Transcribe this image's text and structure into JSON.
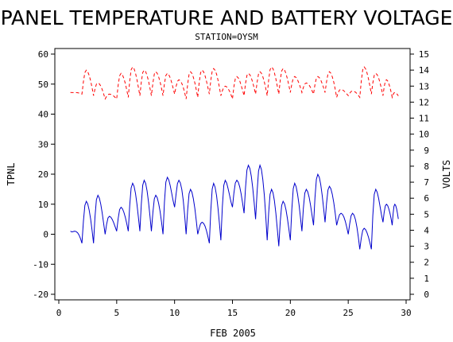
{
  "chart_data": {
    "type": "line",
    "title": "PANEL TEMPERATURE AND BATTERY VOLTAGE",
    "subtitle": "STATION=OYSM",
    "xlabel": "FEB 2005",
    "ylabel_left": "TPNL",
    "ylabel_right": "VOLTS",
    "xlim": [
      0,
      30
    ],
    "ylim_left": [
      -20,
      60
    ],
    "ylim_right": [
      0,
      15
    ],
    "x_ticks": [
      0,
      5,
      10,
      15,
      20,
      25,
      30
    ],
    "y_left_ticks": [
      -20,
      -10,
      0,
      10,
      20,
      30,
      40,
      50,
      60
    ],
    "y_right_ticks": [
      0,
      1,
      2,
      3,
      4,
      5,
      6,
      7,
      8,
      9,
      10,
      11,
      12,
      13,
      14,
      15
    ],
    "series": [
      {
        "color": "#0000cc",
        "axis": "left",
        "style": "solid",
        "daily": [
          {
            "day": 1,
            "min": 1,
            "max": 1
          },
          {
            "day": 2,
            "min": -3,
            "max": 11
          },
          {
            "day": 3,
            "min": -3,
            "max": 13
          },
          {
            "day": 4,
            "min": 0,
            "max": 6
          },
          {
            "day": 5,
            "min": 1,
            "max": 9
          },
          {
            "day": 6,
            "min": 1,
            "max": 17
          },
          {
            "day": 7,
            "min": 1,
            "max": 18
          },
          {
            "day": 8,
            "min": 1,
            "max": 13
          },
          {
            "day": 9,
            "min": 0,
            "max": 19
          },
          {
            "day": 10,
            "min": 9,
            "max": 18
          },
          {
            "day": 11,
            "min": 0,
            "max": 15
          },
          {
            "day": 12,
            "min": 0,
            "max": 4
          },
          {
            "day": 13,
            "min": -3,
            "max": 17
          },
          {
            "day": 14,
            "min": -2,
            "max": 18
          },
          {
            "day": 15,
            "min": 9,
            "max": 18
          },
          {
            "day": 16,
            "min": 7,
            "max": 23
          },
          {
            "day": 17,
            "min": 5,
            "max": 23
          },
          {
            "day": 18,
            "min": -2,
            "max": 15
          },
          {
            "day": 19,
            "min": -4,
            "max": 11
          },
          {
            "day": 20,
            "min": -2,
            "max": 17
          },
          {
            "day": 21,
            "min": 1,
            "max": 15
          },
          {
            "day": 22,
            "min": 3,
            "max": 20
          },
          {
            "day": 23,
            "min": 4,
            "max": 16
          },
          {
            "day": 24,
            "min": 3,
            "max": 7
          },
          {
            "day": 25,
            "min": 0,
            "max": 7
          },
          {
            "day": 26,
            "min": -5,
            "max": 2
          },
          {
            "day": 27,
            "min": -5,
            "max": 15
          },
          {
            "day": 28,
            "min": 4,
            "max": 10
          },
          {
            "day": 28.8,
            "min": 3,
            "max": 10
          }
        ]
      },
      {
        "color": "#ff0000",
        "axis": "right",
        "style": "dashed",
        "daily": [
          {
            "day": 1,
            "min": 12.6,
            "max": 12.6
          },
          {
            "day": 2,
            "min": 12.5,
            "max": 14.0
          },
          {
            "day": 3,
            "min": 12.4,
            "max": 13.2
          },
          {
            "day": 4,
            "min": 12.2,
            "max": 12.5
          },
          {
            "day": 5,
            "min": 12.2,
            "max": 13.8
          },
          {
            "day": 6,
            "min": 12.3,
            "max": 14.2
          },
          {
            "day": 7,
            "min": 12.4,
            "max": 14.0
          },
          {
            "day": 8,
            "min": 12.4,
            "max": 13.9
          },
          {
            "day": 9,
            "min": 12.4,
            "max": 13.8
          },
          {
            "day": 10,
            "min": 12.5,
            "max": 13.4
          },
          {
            "day": 11,
            "min": 12.2,
            "max": 13.9
          },
          {
            "day": 12,
            "min": 12.3,
            "max": 14.0
          },
          {
            "day": 13,
            "min": 12.5,
            "max": 14.1
          },
          {
            "day": 14,
            "min": 12.4,
            "max": 13.0
          },
          {
            "day": 15,
            "min": 12.2,
            "max": 13.6
          },
          {
            "day": 16,
            "min": 12.4,
            "max": 13.8
          },
          {
            "day": 17,
            "min": 12.5,
            "max": 13.9
          },
          {
            "day": 18,
            "min": 12.4,
            "max": 14.2
          },
          {
            "day": 19,
            "min": 12.5,
            "max": 14.1
          },
          {
            "day": 20,
            "min": 12.6,
            "max": 13.6
          },
          {
            "day": 21,
            "min": 12.6,
            "max": 13.2
          },
          {
            "day": 22,
            "min": 12.5,
            "max": 13.6
          },
          {
            "day": 23,
            "min": 12.6,
            "max": 13.9
          },
          {
            "day": 24,
            "min": 12.3,
            "max": 12.8
          },
          {
            "day": 25,
            "min": 12.4,
            "max": 12.7
          },
          {
            "day": 26,
            "min": 12.3,
            "max": 14.2
          },
          {
            "day": 27,
            "min": 12.5,
            "max": 13.8
          },
          {
            "day": 28,
            "min": 12.4,
            "max": 13.4
          },
          {
            "day": 28.8,
            "min": 12.3,
            "max": 12.6
          }
        ]
      }
    ]
  }
}
